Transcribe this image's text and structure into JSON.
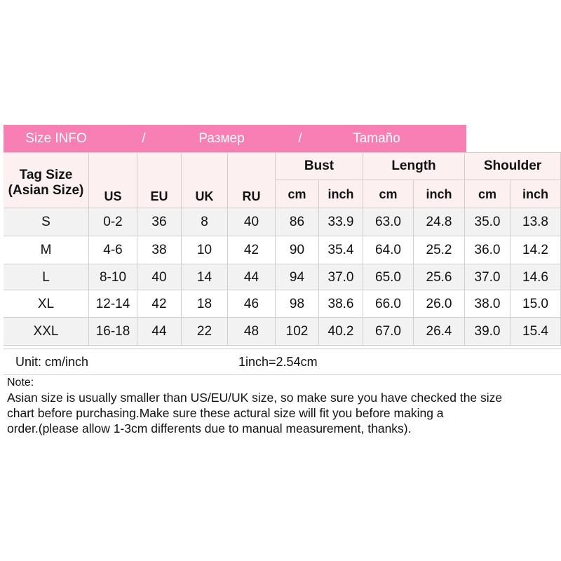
{
  "banner": {
    "title": "Size INFO",
    "sep1": "/",
    "russian": "Размер",
    "sep2": "/",
    "spanish": "Tamaño"
  },
  "table": {
    "header": {
      "tag_size": [
        "Tag Size",
        "(Asian Size)"
      ],
      "columns": [
        "US",
        "EU",
        "UK",
        "RU"
      ],
      "groups": [
        "Bust",
        "Length",
        "Shoulder"
      ],
      "subs": [
        "cm",
        "inch",
        "cm",
        "inch",
        "cm",
        "inch"
      ]
    },
    "rows": [
      [
        "S",
        "0-2",
        "36",
        "8",
        "40",
        "86",
        "33.9",
        "63.0",
        "24.8",
        "35.0",
        "13.8"
      ],
      [
        "M",
        "4-6",
        "38",
        "10",
        "42",
        "90",
        "35.4",
        "64.0",
        "25.2",
        "36.0",
        "14.2"
      ],
      [
        "L",
        "8-10",
        "40",
        "14",
        "44",
        "94",
        "37.0",
        "65.0",
        "25.6",
        "37.0",
        "14.6"
      ],
      [
        "XL",
        "12-14",
        "42",
        "18",
        "46",
        "98",
        "38.6",
        "66.0",
        "26.0",
        "38.0",
        "15.0"
      ],
      [
        "XXL",
        "16-18",
        "44",
        "22",
        "48",
        "102",
        "40.2",
        "67.0",
        "26.4",
        "39.0",
        "15.4"
      ]
    ]
  },
  "footer": {
    "unit": "Unit: cm/inch",
    "conversion": "1inch=2.54cm"
  },
  "note": {
    "label": "Note:",
    "lines": [
      "Asian size is usually smaller than US/EU/UK size, so make sure you have checked the size",
      "chart before purchasing.Make sure these actural size will fit you before making a",
      "order.(please allow 1-3cm differents due to manual measurement, thanks)."
    ]
  }
}
